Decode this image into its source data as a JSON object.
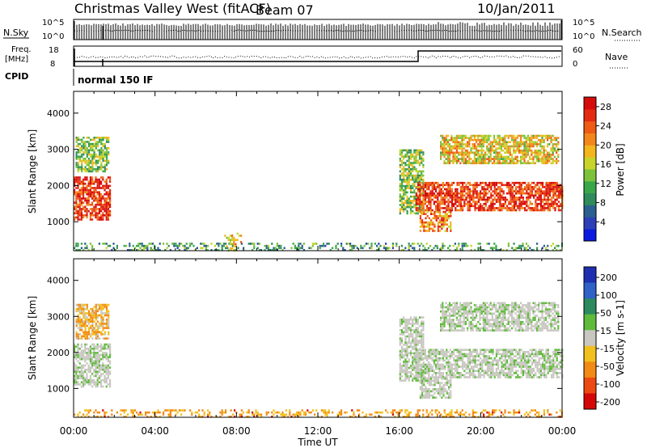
{
  "header": {
    "title": "Christmas Valley West (fitACF)",
    "beam": "Beam 07",
    "date": "10/Jan/2011"
  },
  "summary_panels": {
    "nsky": {
      "label": "N.Sky",
      "top": "10^5",
      "bottom": "10^0"
    },
    "nsearch": {
      "label": "N.Search",
      "top": "10^5",
      "bottom": "10^0"
    },
    "freq": {
      "label_line1": "Freq.",
      "label_line2": "[MHz]",
      "top": "18",
      "bottom": "8"
    },
    "nave": {
      "label": "Nave",
      "top": "60",
      "bottom": "0"
    },
    "cpid": {
      "label": "CPID",
      "mode": "normal 150 IF"
    }
  },
  "colors": {
    "power": [
      "#0a1adf",
      "#2c3fb8",
      "#2a5f8f",
      "#2f8a5c",
      "#3aa64a",
      "#7cc23b",
      "#c8d42a",
      "#f2b51c",
      "#f2861a",
      "#ef5a14",
      "#e52a12",
      "#d60b0b"
    ],
    "velocity": [
      "#1e2fb0",
      "#2f61c7",
      "#2c8a5e",
      "#5fbb3b",
      "#c8c7c0",
      "#f2c01c",
      "#f28a14",
      "#ec4a12",
      "#d40808"
    ],
    "ground_scatter": "#c8c7c0"
  },
  "chart_data": [
    {
      "type": "heatmap",
      "title": "Power",
      "xlabel": "Time UT",
      "ylabel": "Slant Range [km]",
      "x_ticks": [
        "00:00",
        "04:00",
        "08:00",
        "12:00",
        "16:00",
        "20:00",
        "00:00"
      ],
      "y_ticks": [
        1000,
        2000,
        3000,
        4000
      ],
      "xlim_hours": [
        0,
        24
      ],
      "ylim_km": [
        200,
        4600
      ],
      "colorbar": {
        "label": "Power [dB]",
        "ticks": [
          4,
          8,
          12,
          16,
          20,
          24,
          28
        ],
        "range": [
          0,
          30
        ]
      },
      "regions": [
        {
          "t0": 0.0,
          "t1": 1.8,
          "r0": 1050,
          "r1": 2250,
          "value": 26
        },
        {
          "t0": 0.1,
          "t1": 1.7,
          "r0": 2400,
          "r1": 3350,
          "value": 14
        },
        {
          "t0": 0.0,
          "t1": 24.0,
          "r0": 200,
          "r1": 420,
          "value": 10
        },
        {
          "t0": 7.4,
          "t1": 8.2,
          "r0": 200,
          "r1": 700,
          "value": 18
        },
        {
          "t0": 16.0,
          "t1": 17.2,
          "r0": 1200,
          "r1": 3000,
          "value": 14
        },
        {
          "t0": 16.8,
          "t1": 24.0,
          "r0": 1300,
          "r1": 2100,
          "value": 26
        },
        {
          "t0": 17.0,
          "t1": 18.5,
          "r0": 750,
          "r1": 1300,
          "value": 22
        },
        {
          "t0": 18.0,
          "t1": 23.8,
          "r0": 2600,
          "r1": 3400,
          "value": 18
        }
      ]
    },
    {
      "type": "heatmap",
      "title": "Velocity",
      "xlabel": "Time UT",
      "ylabel": "Slant Range [km]",
      "x_ticks": [
        "00:00",
        "04:00",
        "08:00",
        "12:00",
        "16:00",
        "20:00",
        "00:00"
      ],
      "y_ticks": [
        1000,
        2000,
        3000,
        4000
      ],
      "xlim_hours": [
        0,
        24
      ],
      "ylim_km": [
        200,
        4600
      ],
      "colorbar": {
        "label": "Velocity [m s-1]",
        "ticks": [
          "200",
          "100",
          "50",
          "15",
          "-15",
          "-50",
          "-100",
          "-200"
        ]
      },
      "regions": [
        {
          "t0": 0.0,
          "t1": 1.8,
          "r0": 1050,
          "r1": 2250,
          "value": 0
        },
        {
          "t0": 0.1,
          "t1": 1.7,
          "r0": 2400,
          "r1": 3350,
          "value": -40
        },
        {
          "t0": 0.0,
          "t1": 24.0,
          "r0": 200,
          "r1": 420,
          "value": -60
        },
        {
          "t0": 16.0,
          "t1": 17.2,
          "r0": 1200,
          "r1": 3000,
          "value": 0
        },
        {
          "t0": 16.8,
          "t1": 24.0,
          "r0": 1300,
          "r1": 2100,
          "value": 0
        },
        {
          "t0": 17.0,
          "t1": 18.5,
          "r0": 750,
          "r1": 1300,
          "value": 0
        },
        {
          "t0": 18.0,
          "t1": 23.8,
          "r0": 2600,
          "r1": 3400,
          "value": 0
        }
      ]
    }
  ]
}
